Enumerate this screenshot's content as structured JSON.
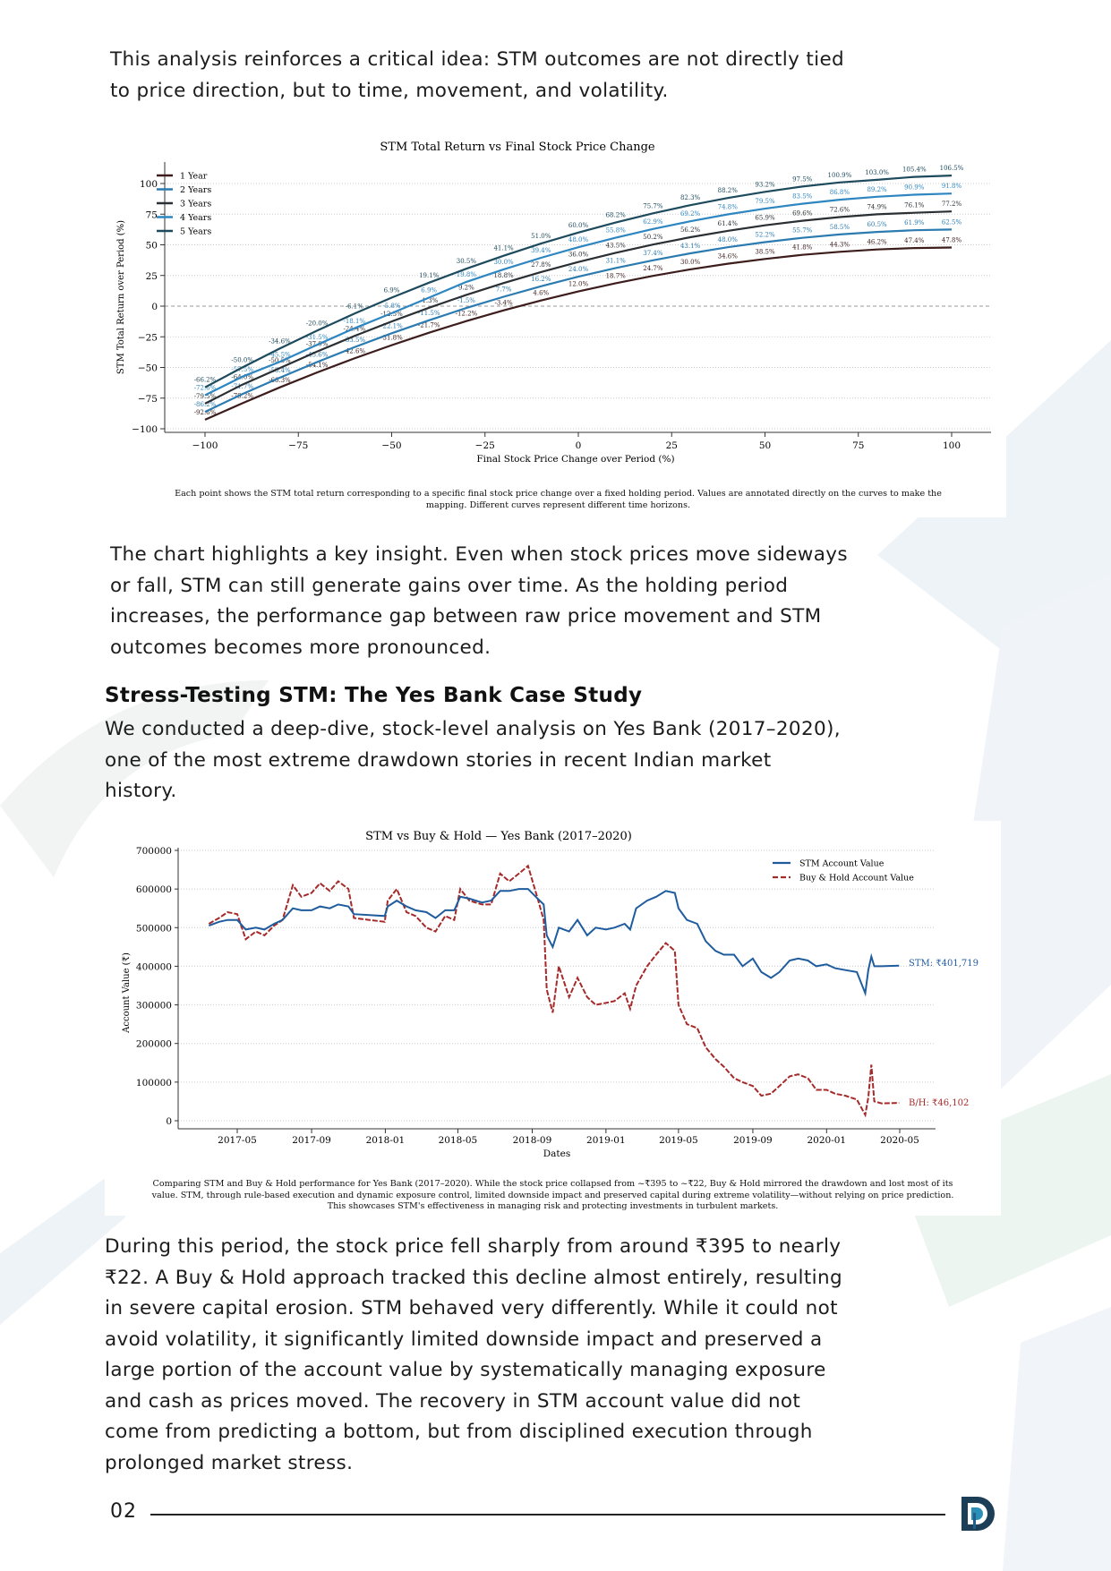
{
  "paragraphs": {
    "intro": [
      "This analysis reinforces a critical idea: STM outcomes are not directly tied",
      "to price direction, but to time, movement, and volatility."
    ],
    "insight": [
      "The chart highlights a key insight. Even when stock prices move sideways",
      "or fall, STM can still generate gains over time. As the holding period",
      "increases, the performance gap between raw price movement and STM",
      "outcomes becomes more pronounced."
    ],
    "case_heading": "Stress-Testing STM: The Yes Bank Case Study",
    "case_intro": [
      "We conducted a deep-dive, stock-level analysis on Yes Bank (2017–2020),",
      "one of the most extreme drawdown stories in recent Indian market",
      "history."
    ],
    "case_result": [
      "During this period, the stock price fell sharply from around ₹395 to nearly",
      "₹22. A Buy & Hold approach tracked this decline almost entirely, resulting",
      "in severe capital erosion. STM behaved very differently. While it could not",
      "avoid volatility, it significantly limited downside impact and preserved a",
      "large portion of the account value by systematically managing exposure",
      "and cash as prices moved. The recovery in STM account value did not",
      "come from predicting a bottom, but from disciplined execution through",
      "prolonged market stress."
    ]
  },
  "footer": {
    "page_number": "02",
    "logo_text": "D",
    "logo_colors": [
      "#1f5f8b",
      "#2c8fb8",
      "#1c3f57"
    ]
  },
  "chart_data": [
    {
      "type": "line",
      "title": "STM Total Return vs Final Stock Price Change",
      "xlabel": "Final Stock Price Change over Period (%)",
      "ylabel": "STM Total Return over Period (%)",
      "xlim": [
        -100,
        100
      ],
      "ylim": [
        -100,
        100
      ],
      "xticks": [
        -100,
        -75,
        -50,
        -25,
        0,
        25,
        50,
        75,
        100
      ],
      "yticks": [
        -100,
        -75,
        -50,
        -25,
        0,
        25,
        50,
        75,
        100
      ],
      "grid": "horizontal dotted",
      "legend": "top-left",
      "x": [
        -100,
        -90,
        -80,
        -70,
        -60,
        -50,
        -40,
        -30,
        -20,
        -10,
        0,
        10,
        20,
        30,
        40,
        50,
        60,
        70,
        80,
        90,
        100
      ],
      "series": [
        {
          "name": "1 Year",
          "color": "#3d1c1c",
          "values": [
            -92.6,
            -79.2,
            -66.3,
            -54.1,
            -42.6,
            -31.8,
            -21.7,
            -12.2,
            -3.4,
            4.6,
            12.0,
            18.7,
            24.7,
            30.0,
            34.6,
            38.5,
            41.8,
            44.3,
            46.2,
            47.4,
            47.8
          ]
        },
        {
          "name": "2 Years",
          "color": "#2b7bb0",
          "values": [
            -86.2,
            -71.7,
            -58.4,
            -45.6,
            -33.5,
            -22.1,
            -11.5,
            -1.5,
            7.7,
            16.2,
            24.0,
            31.1,
            37.4,
            43.1,
            48.0,
            52.2,
            55.7,
            58.5,
            60.5,
            61.9,
            62.5
          ]
        },
        {
          "name": "3 Years",
          "color": "#2a2f33",
          "values": [
            -79.5,
            -64.0,
            -50.5,
            -37.0,
            -24.4,
            -12.5,
            -1.3,
            9.2,
            18.8,
            27.8,
            36.0,
            43.5,
            50.2,
            56.2,
            61.4,
            65.9,
            69.6,
            72.6,
            74.9,
            76.1,
            77.2
          ]
        },
        {
          "name": "4 Years",
          "color": "#2e86c1",
          "values": [
            -72.6,
            -57.5,
            -45.5,
            -31.5,
            -18.1,
            -5.8,
            6.9,
            19.8,
            30.0,
            39.4,
            48.0,
            55.8,
            62.9,
            69.2,
            74.8,
            79.5,
            83.5,
            86.8,
            89.2,
            90.9,
            91.8
          ]
        },
        {
          "name": "5 Years",
          "color": "#1d4a5c",
          "values": [
            -66.2,
            -50.0,
            -34.6,
            -20.0,
            -6.1,
            6.9,
            19.1,
            30.5,
            41.1,
            51.0,
            60.0,
            68.2,
            75.7,
            82.3,
            88.2,
            93.2,
            97.5,
            100.9,
            103.0,
            105.4,
            106.5
          ]
        }
      ],
      "caption": [
        "Each point shows the STM total return corresponding to a specific final stock price change over a fixed holding period. Values are annotated directly on the curves to make the",
        "mapping. Different curves represent different time horizons."
      ]
    },
    {
      "type": "line",
      "title": "STM vs Buy & Hold — Yes Bank (2017–2020)",
      "xlabel": "Dates",
      "ylabel": "Account Value (₹)",
      "xlim": [
        "2017-03-01",
        "2020-05-20"
      ],
      "ylim": [
        0,
        700000
      ],
      "xticks": [
        "2017-05",
        "2017-09",
        "2018-01",
        "2018-05",
        "2018-09",
        "2019-01",
        "2019-05",
        "2019-09",
        "2020-01",
        "2020-05"
      ],
      "yticks": [
        0,
        100000,
        200000,
        300000,
        400000,
        500000,
        600000,
        700000
      ],
      "grid": "horizontal dotted",
      "legend": "top-right",
      "dates": [
        "2017-03-15",
        "2017-04-01",
        "2017-04-15",
        "2017-05-01",
        "2017-05-15",
        "2017-06-01",
        "2017-06-15",
        "2017-07-01",
        "2017-07-15",
        "2017-08-01",
        "2017-08-15",
        "2017-09-01",
        "2017-09-15",
        "2017-10-01",
        "2017-10-15",
        "2017-11-01",
        "2017-11-10",
        "2017-12-31",
        "2018-01-05",
        "2018-01-20",
        "2018-02-05",
        "2018-02-20",
        "2018-03-10",
        "2018-03-25",
        "2018-04-10",
        "2018-04-25",
        "2018-05-05",
        "2018-05-20",
        "2018-06-10",
        "2018-06-25",
        "2018-07-10",
        "2018-07-25",
        "2018-08-10",
        "2018-08-25",
        "2018-09-10",
        "2018-09-20",
        "2018-09-25",
        "2018-10-05",
        "2018-10-15",
        "2018-11-01",
        "2018-11-15",
        "2018-12-01",
        "2018-12-15",
        "2019-01-01",
        "2019-01-15",
        "2019-02-01",
        "2019-02-10",
        "2019-02-20",
        "2019-03-10",
        "2019-03-25",
        "2019-04-10",
        "2019-04-25",
        "2019-05-01",
        "2019-05-15",
        "2019-06-01",
        "2019-06-15",
        "2019-07-01",
        "2019-07-15",
        "2019-08-01",
        "2019-08-15",
        "2019-09-01",
        "2019-09-15",
        "2019-10-01",
        "2019-10-15",
        "2019-11-01",
        "2019-11-15",
        "2019-12-01",
        "2019-12-15",
        "2020-01-01",
        "2020-01-15",
        "2020-02-01",
        "2020-02-20",
        "2020-03-05",
        "2020-03-10",
        "2020-03-15",
        "2020-03-20",
        "2020-04-01",
        "2020-04-30"
      ],
      "series": [
        {
          "name": "STM Account Value",
          "color": "#1f5c9e",
          "style": "solid",
          "values": [
            505000,
            515000,
            520000,
            520000,
            495000,
            500000,
            495000,
            510000,
            520000,
            550000,
            545000,
            545000,
            555000,
            550000,
            560000,
            555000,
            535000,
            530000,
            555000,
            570000,
            555000,
            545000,
            540000,
            525000,
            545000,
            545000,
            580000,
            575000,
            565000,
            570000,
            595000,
            595000,
            600000,
            600000,
            575000,
            560000,
            480000,
            450000,
            500000,
            490000,
            520000,
            480000,
            500000,
            495000,
            500000,
            510000,
            495000,
            550000,
            570000,
            580000,
            595000,
            590000,
            550000,
            520000,
            510000,
            465000,
            440000,
            430000,
            430000,
            400000,
            420000,
            385000,
            370000,
            385000,
            415000,
            420000,
            415000,
            400000,
            405000,
            395000,
            390000,
            385000,
            330000,
            390000,
            425000,
            400000,
            400000,
            401719
          ]
        },
        {
          "name": "Buy & Hold Account Value",
          "color": "#a52a2a",
          "style": "dashed",
          "values": [
            510000,
            525000,
            540000,
            535000,
            470000,
            490000,
            480000,
            505000,
            520000,
            610000,
            580000,
            590000,
            615000,
            595000,
            620000,
            600000,
            525000,
            515000,
            570000,
            600000,
            540000,
            530000,
            500000,
            490000,
            530000,
            520000,
            600000,
            570000,
            560000,
            560000,
            640000,
            620000,
            640000,
            660000,
            575000,
            520000,
            340000,
            280000,
            400000,
            320000,
            370000,
            320000,
            300000,
            305000,
            310000,
            330000,
            290000,
            350000,
            400000,
            430000,
            460000,
            440000,
            300000,
            250000,
            240000,
            190000,
            160000,
            140000,
            110000,
            100000,
            90000,
            65000,
            70000,
            90000,
            115000,
            120000,
            110000,
            80000,
            80000,
            70000,
            65000,
            55000,
            15000,
            60000,
            145000,
            50000,
            45000,
            46102
          ]
        }
      ],
      "annotations": [
        "STM: ₹401,719",
        "B/H: ₹46,102"
      ],
      "caption": [
        "Comparing STM and Buy & Hold performance for Yes Bank (2017–2020). While the stock price collapsed from ~₹395 to ~₹22, Buy & Hold mirrored the drawdown and lost most of its",
        "value. STM, through rule-based execution and dynamic exposure control, limited downside impact and preserved capital during extreme volatility—without relying on price prediction.",
        "This showcases STM's effectiveness in managing risk and protecting investments in turbulent markets."
      ]
    }
  ]
}
